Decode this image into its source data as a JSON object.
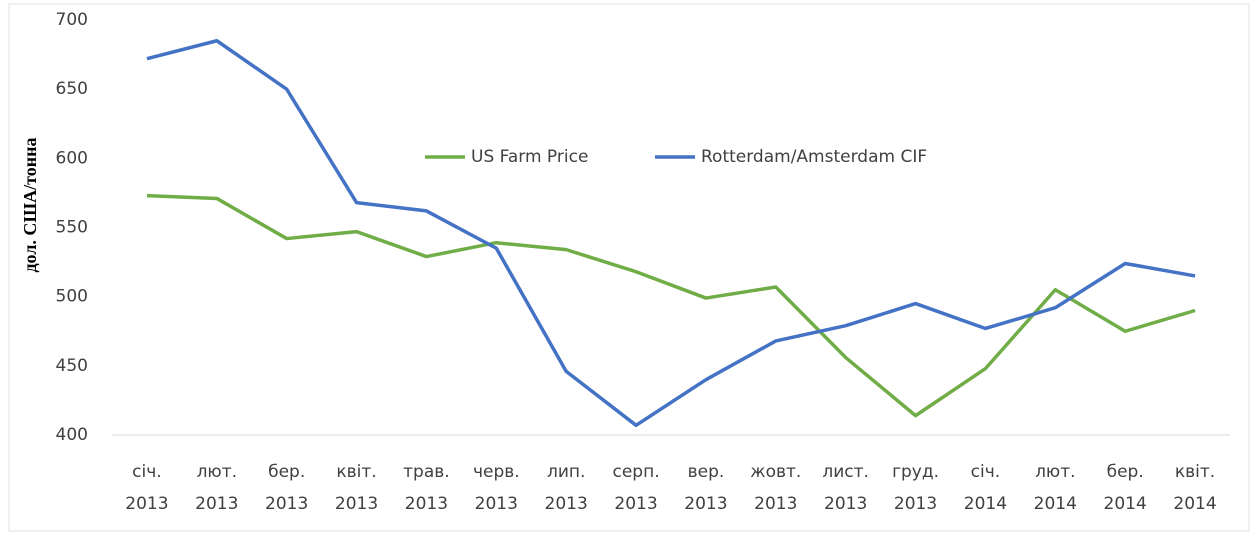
{
  "chart_data": {
    "type": "line",
    "ylabel": "дол. США/тонна",
    "categories": [
      [
        "січ.",
        "2013"
      ],
      [
        "лют.",
        "2013"
      ],
      [
        "бер.",
        "2013"
      ],
      [
        "квіт.",
        "2013"
      ],
      [
        "трав.",
        "2013"
      ],
      [
        "черв.",
        "2013"
      ],
      [
        "лип.",
        "2013"
      ],
      [
        "серп.",
        "2013"
      ],
      [
        "вер.",
        "2013"
      ],
      [
        "жовт.",
        "2013"
      ],
      [
        "лист.",
        "2013"
      ],
      [
        "груд.",
        "2013"
      ],
      [
        "січ.",
        "2014"
      ],
      [
        "лют.",
        "2014"
      ],
      [
        "бер.",
        "2014"
      ],
      [
        "квіт.",
        "2014"
      ]
    ],
    "series": [
      {
        "name": "US Farm Price",
        "color": "#70ad47",
        "values": [
          573,
          571,
          542,
          547,
          529,
          539,
          534,
          518,
          499,
          507,
          456,
          414,
          448,
          505,
          475,
          490
        ]
      },
      {
        "name": "Rotterdam/Amsterdam CIF",
        "color": "#4472c4",
        "values": [
          672,
          685,
          650,
          568,
          562,
          535,
          446,
          407,
          440,
          468,
          479,
          495,
          477,
          492,
          524,
          515
        ]
      }
    ],
    "ylim": [
      400,
      700
    ],
    "yticks": [
      400,
      450,
      500,
      550,
      600,
      650,
      700
    ],
    "grid": false,
    "legend": "center"
  }
}
